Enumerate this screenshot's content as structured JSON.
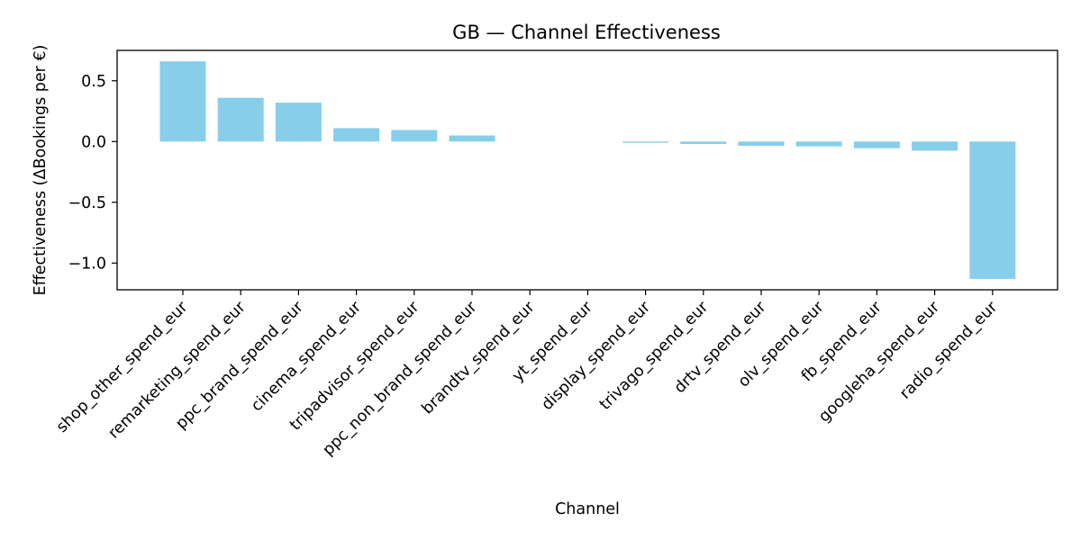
{
  "chart_data": {
    "type": "bar",
    "title": "GB — Channel Effectiveness",
    "xlabel": "Channel",
    "ylabel": "Effectiveness (ΔBookings per €)",
    "ylim": [
      -1.22,
      0.75
    ],
    "yticks": [
      0.5,
      0.0,
      -0.5,
      -1.0
    ],
    "ytick_labels": [
      "0.5",
      "0.0",
      "−0.5",
      "−1.0"
    ],
    "grid": false,
    "bar_color": "#87CEEB",
    "categories": [
      "shop_other_spend_eur",
      "remarketing_spend_eur",
      "ppc_brand_spend_eur",
      "cinema_spend_eur",
      "tripadvisor_spend_eur",
      "ppc_non_brand_spend_eur",
      "brandtv_spend_eur",
      "yt_spend_eur",
      "display_spend_eur",
      "trivago_spend_eur",
      "drtv_spend_eur",
      "olv_spend_eur",
      "fb_spend_eur",
      "googleha_spend_eur",
      "radio_spend_eur"
    ],
    "values": [
      0.66,
      0.36,
      0.32,
      0.11,
      0.095,
      0.05,
      0.0,
      0.0,
      -0.01,
      -0.02,
      -0.035,
      -0.04,
      -0.055,
      -0.075,
      -1.13
    ]
  }
}
